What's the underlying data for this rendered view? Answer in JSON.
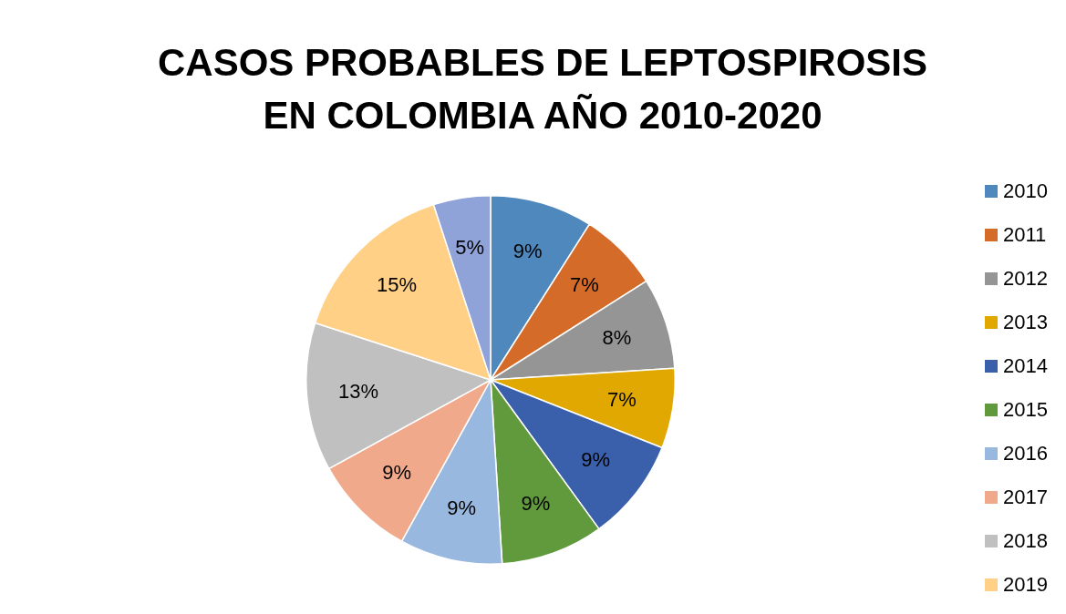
{
  "chart_data": {
    "type": "pie",
    "title": "CASOS PROBABLES DE LEPTOSPIROSIS EN COLOMBIA AÑO 2010-2020",
    "categories": [
      "2010",
      "2011",
      "2012",
      "2013",
      "2014",
      "2015",
      "2016",
      "2017",
      "2018",
      "2019",
      null
    ],
    "values": [
      9,
      7,
      8,
      7,
      9,
      9,
      9,
      9,
      13,
      15,
      5
    ],
    "value_labels": [
      "9%",
      "7%",
      "8%",
      "7%",
      "9%",
      "9%",
      "9%",
      "9%",
      "13%",
      "15%",
      "5%"
    ],
    "colors": [
      "#4e88bd",
      "#d46b29",
      "#959595",
      "#e0a800",
      "#3a60ab",
      "#619a3d",
      "#98b8e0",
      "#f0a98b",
      "#c0c0c0",
      "#ffd086",
      "#8fa3d8"
    ],
    "legend": "right"
  }
}
